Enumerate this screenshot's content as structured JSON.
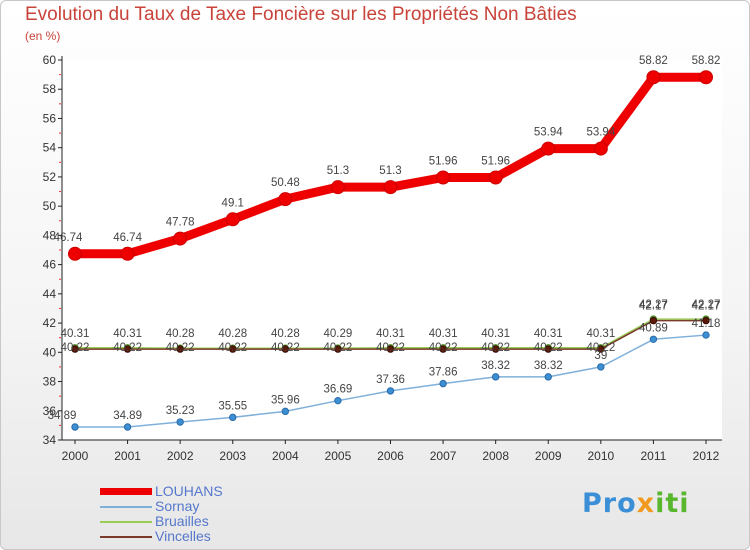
{
  "header": {
    "title": "Evolution du Taux de Taxe Foncière sur les Propriétés Non Bâties",
    "unit": "(en %)"
  },
  "logo": {
    "part1": "Pro",
    "part2": "x",
    "part3": "iti"
  },
  "chart_data": {
    "type": "line",
    "title": "Evolution du Taux de Taxe Foncière sur les Propriétés Non Bâties",
    "ylabel": "(en %)",
    "xlabel": "",
    "x": [
      "2000",
      "2001",
      "2002",
      "2003",
      "2004",
      "2005",
      "2006",
      "2007",
      "2008",
      "2009",
      "2010",
      "2011",
      "2012"
    ],
    "ylim": [
      34,
      60
    ],
    "yticks": [
      34,
      36,
      38,
      40,
      42,
      44,
      46,
      48,
      50,
      52,
      54,
      56,
      58,
      60
    ],
    "legend_position": "bottom-left",
    "series": [
      {
        "name": "LOUHANS",
        "color": "#ee0000",
        "values": [
          46.74,
          46.74,
          47.78,
          49.1,
          50.48,
          51.3,
          51.3,
          51.96,
          51.96,
          53.94,
          53.94,
          58.82,
          58.82
        ],
        "labels": [
          "46.74",
          "46.74",
          "47.78",
          "49.1",
          "50.48",
          "51.3",
          "51.3",
          "51.96",
          "51.96",
          "53.94",
          "53.94",
          "58.82",
          "58.82"
        ]
      },
      {
        "name": "Sornay",
        "color": "#7fb0da",
        "values": [
          34.89,
          34.89,
          35.23,
          35.55,
          35.96,
          36.69,
          37.36,
          37.86,
          38.32,
          38.32,
          39,
          40.89,
          41.18
        ],
        "labels": [
          "34.89",
          "34.89",
          "35.23",
          "35.55",
          "35.96",
          "36.69",
          "37.36",
          "37.86",
          "38.32",
          "38.32",
          "39",
          "40.89",
          "41.18"
        ]
      },
      {
        "name": "Bruailles",
        "color": "#99cc55",
        "values": [
          40.31,
          40.31,
          40.28,
          40.28,
          40.28,
          40.29,
          40.31,
          40.31,
          40.31,
          40.31,
          40.31,
          42.27,
          42.27
        ],
        "labels": [
          "40.31",
          "40.31",
          "40.28",
          "40.28",
          "40.28",
          "40.29",
          "40.31",
          "40.31",
          "40.31",
          "40.31",
          "40.31",
          "42.27",
          "42.27"
        ]
      },
      {
        "name": "Vincelles",
        "color": "#7a3a2a",
        "values": [
          40.22,
          40.22,
          40.22,
          40.22,
          40.22,
          40.22,
          40.22,
          40.22,
          40.22,
          40.22,
          40.22,
          42.17,
          42.17
        ],
        "labels": [
          "40.22",
          "40.22",
          "40.22",
          "40.22",
          "40.22",
          "40.22",
          "40.22",
          "40.22",
          "40.22",
          "40.22",
          "40.22",
          "42.17",
          "42.17"
        ]
      }
    ]
  }
}
